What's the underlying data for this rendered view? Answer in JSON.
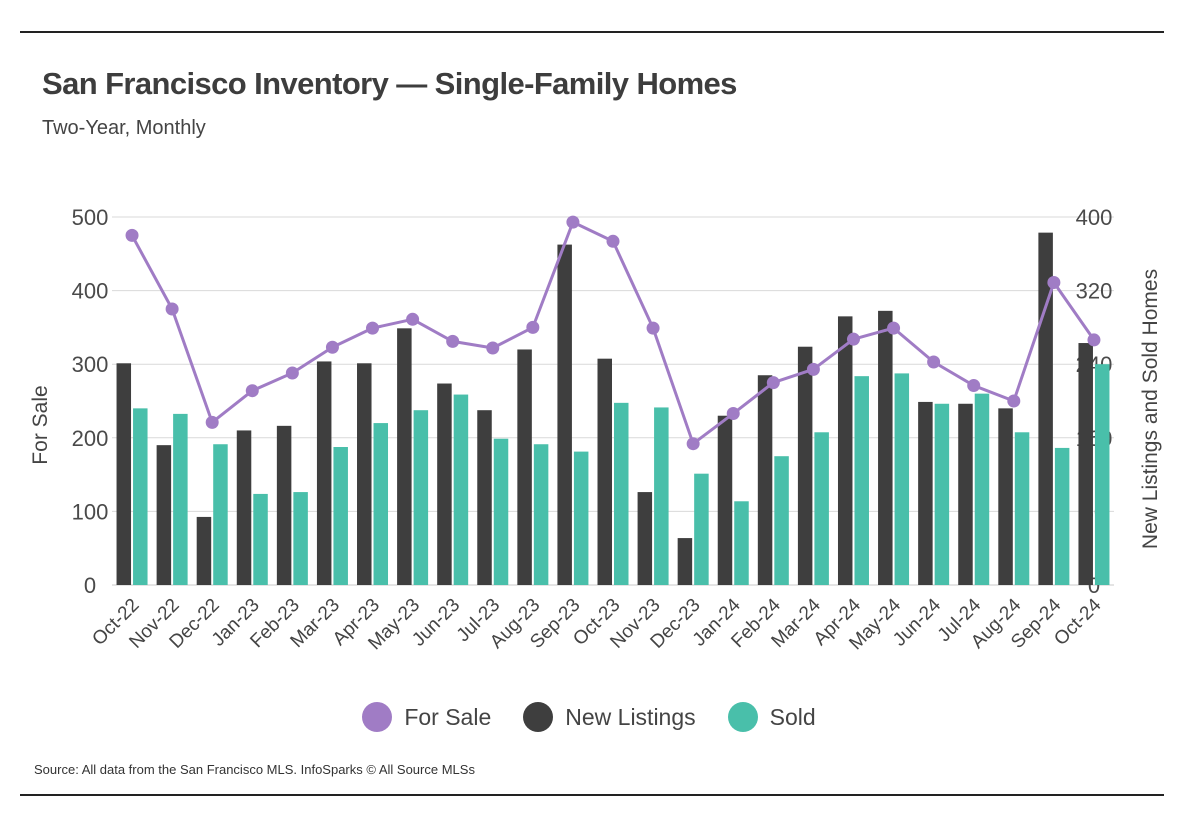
{
  "header": {
    "title": "San Francisco Inventory — Single-Family Homes",
    "subtitle": "Two-Year, Monthly"
  },
  "footer": {
    "source": "Source:  All data from the San Francisco MLS. InfoSparks © All Source MLSs"
  },
  "legend": {
    "items": [
      {
        "label": "For Sale",
        "color": "#a07cc5"
      },
      {
        "label": "New Listings",
        "color": "#3e3e3e"
      },
      {
        "label": "Sold",
        "color": "#49bfaa"
      }
    ]
  },
  "chart_data": {
    "type": "bar",
    "categories": [
      "Oct-22",
      "Nov-22",
      "Dec-22",
      "Jan-23",
      "Feb-23",
      "Mar-23",
      "Apr-23",
      "May-23",
      "Jun-23",
      "Jul-23",
      "Aug-23",
      "Sep-23",
      "Oct-23",
      "Nov-23",
      "Dec-23",
      "Jan-24",
      "Feb-24",
      "Mar-24",
      "Apr-24",
      "May-24",
      "Jun-24",
      "Jul-24",
      "Aug-24",
      "Sep-24",
      "Oct-24"
    ],
    "left_axis": {
      "label": "For Sale",
      "ylim": [
        0,
        500
      ],
      "ticks": [
        0,
        100,
        200,
        300,
        400,
        500
      ]
    },
    "right_axis": {
      "label": "New Listings and Sold Homes",
      "ylim": [
        0,
        400
      ],
      "ticks": [
        0,
        80,
        160,
        240,
        320,
        400
      ]
    },
    "grid": true,
    "legend_position": "bottom",
    "series": [
      {
        "name": "For Sale",
        "type": "line",
        "axis": "left",
        "color": "#a07cc5",
        "values": [
          475,
          375,
          221,
          264,
          288,
          323,
          349,
          361,
          331,
          322,
          350,
          493,
          467,
          349,
          192,
          233,
          275,
          293,
          334,
          349,
          303,
          271,
          250,
          411,
          333
        ]
      },
      {
        "name": "New Listings",
        "type": "bar",
        "axis": "right",
        "color": "#3e3e3e",
        "values": [
          241,
          152,
          74,
          168,
          173,
          243,
          241,
          279,
          219,
          190,
          256,
          370,
          246,
          101,
          51,
          184,
          228,
          259,
          292,
          298,
          199,
          197,
          192,
          383,
          263
        ]
      },
      {
        "name": "Sold",
        "type": "bar",
        "axis": "right",
        "color": "#49bfaa",
        "values": [
          192,
          186,
          153,
          99,
          101,
          150,
          176,
          190,
          207,
          159,
          153,
          145,
          198,
          193,
          121,
          91,
          140,
          166,
          227,
          230,
          197,
          208,
          166,
          149,
          240
        ]
      }
    ]
  }
}
